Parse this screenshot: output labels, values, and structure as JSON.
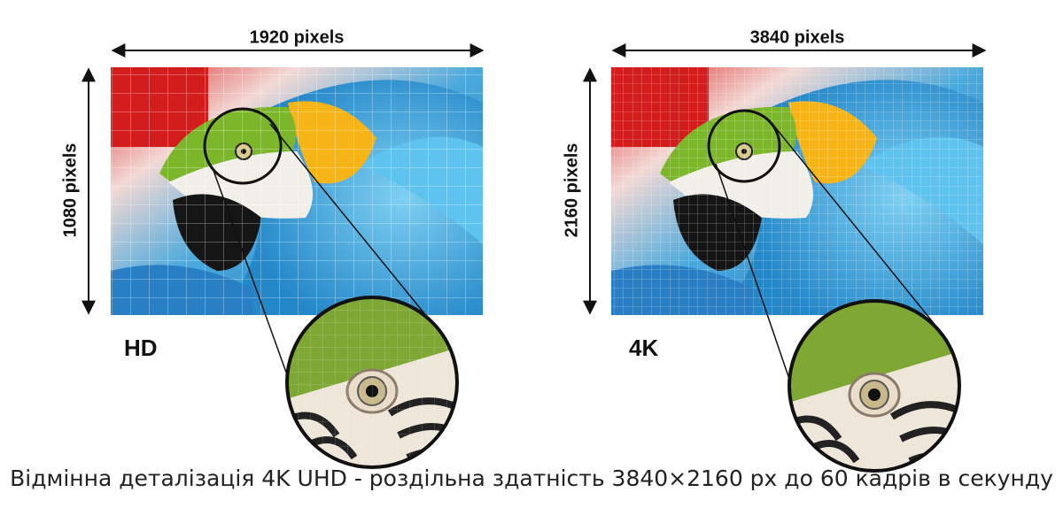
{
  "panels": [
    {
      "width_label": "1920 pixels",
      "height_label": "1080 pixels",
      "name": "HD"
    },
    {
      "width_label": "3840 pixels",
      "height_label": "2160 pixels",
      "name": "4K"
    }
  ],
  "caption": "Відмінна деталізація 4K UHD - роздільна здатність 3840×2160 px до 60 кадрів в секунду"
}
